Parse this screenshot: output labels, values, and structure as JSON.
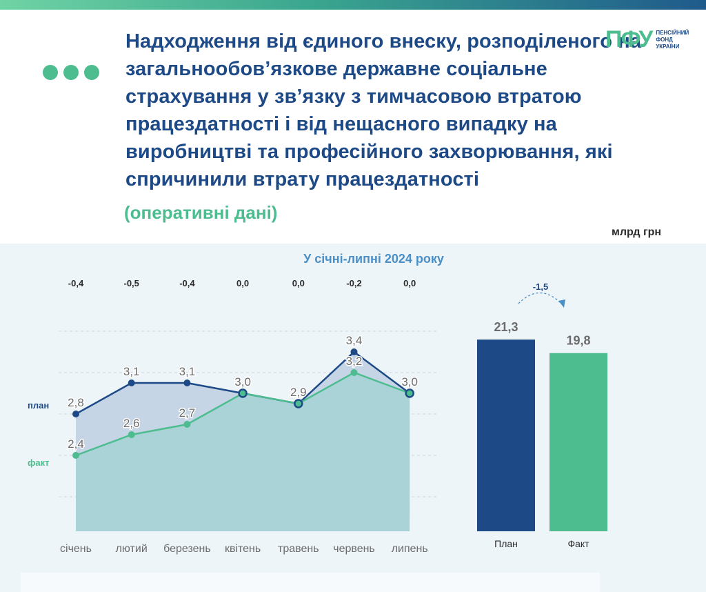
{
  "title": "Надходження від єдиного внеску, розподіленого на загальнообов’язкове державне соціальне страхування у зв’язку з тимчасовою втратою працездатності і від нещасного випадку на виробництві та професійного захворювання, які спричинили втрату працездатності",
  "subtitle": "(оперативні дані)",
  "logo": {
    "mark": "ПФУ",
    "text_lines": [
      "ПЕНСІЙНИЙ",
      "ФОНД",
      "УКРАЇНИ"
    ]
  },
  "unit": "млрд грн",
  "colors": {
    "plan": "#1d4a86",
    "fact": "#4dbd8f",
    "accent_text": "#4a8fc6"
  },
  "chart_data": [
    {
      "type": "area",
      "title": "У січні-липні 2024 року",
      "categories": [
        "січень",
        "лютий",
        "березень",
        "квітень",
        "травень",
        "червень",
        "липень"
      ],
      "series": [
        {
          "name": "план",
          "values": [
            2.8,
            3.1,
            3.1,
            3.0,
            2.9,
            3.4,
            3.0
          ]
        },
        {
          "name": "факт",
          "values": [
            2.4,
            2.6,
            2.7,
            3.0,
            2.9,
            3.2,
            3.0
          ]
        }
      ],
      "differences": [
        "-0,4",
        "-0,5",
        "-0,4",
        "0,0",
        "0,0",
        "-0,2",
        "0,0"
      ],
      "value_labels": {
        "план": [
          "2,8",
          "3,1",
          "3,1",
          "3,0",
          "2,9",
          "3,4",
          "3,0"
        ],
        "факт": [
          "2,4",
          "2,6",
          "2,7",
          "",
          "",
          "3,2",
          ""
        ]
      },
      "ylim": [
        1.8,
        3.8
      ],
      "grid": true
    },
    {
      "type": "bar",
      "categories": [
        "План",
        "Факт"
      ],
      "values": [
        21.3,
        19.8
      ],
      "value_labels": [
        "21,3",
        "19,8"
      ],
      "difference_label": "-1,5",
      "ylim": [
        0,
        23
      ]
    }
  ]
}
